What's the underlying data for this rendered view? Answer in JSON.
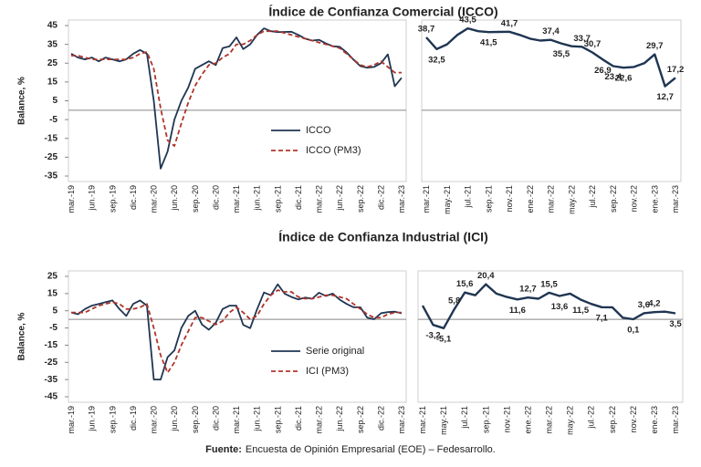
{
  "chart_data": [
    {
      "type": "line",
      "title": "Índice de Confianza Comercial (ICCO)",
      "ylabel": "Balance, %",
      "categories": [
        "mar.-19",
        null,
        null,
        "jun.-19",
        null,
        null,
        "sep.-19",
        null,
        null,
        "dic.-19",
        null,
        null,
        "mar.-20",
        null,
        null,
        "jun.-20",
        null,
        null,
        "sep.-20",
        null,
        null,
        "dic.-20",
        null,
        null,
        "mar.-21",
        null,
        null,
        "jun.-21",
        null,
        null,
        "sep.-21",
        null,
        null,
        "dic.-21",
        null,
        null,
        "mar.-22",
        null,
        null,
        "jun.-22",
        null,
        null,
        "sep.-22",
        null,
        null,
        "dic.-22",
        null,
        null,
        "mar.-23"
      ],
      "series": [
        {
          "name": "ICCO",
          "color": "#1f3552",
          "style": "solid",
          "values": [
            30,
            28,
            27,
            28,
            26,
            28,
            27,
            26,
            27,
            30,
            32,
            30,
            5,
            -31,
            -22,
            -5,
            5,
            12,
            22,
            24,
            26,
            24,
            33,
            34,
            38.7,
            32.5,
            35,
            40,
            43.5,
            42,
            41.5,
            41.6,
            41.7,
            40,
            38,
            37,
            37.4,
            35.5,
            34,
            33.7,
            30.7,
            26.9,
            23.4,
            22.6,
            23,
            25,
            29.7,
            12.7,
            17.2
          ]
        },
        {
          "name": "ICCO (PM3)",
          "color": "#b0352b",
          "style": "dashed",
          "values": [
            29,
            29,
            28,
            27,
            27,
            27,
            27,
            27,
            27,
            28,
            30,
            31,
            22,
            1,
            -16,
            -19,
            -7,
            4,
            13,
            19,
            24,
            25,
            28,
            30,
            35,
            35,
            37,
            40,
            42,
            42,
            42,
            41,
            40,
            39,
            38,
            37,
            36,
            35,
            34,
            33,
            30,
            27,
            24,
            23,
            24,
            26,
            23,
            20,
            20
          ]
        }
      ],
      "ylim": [
        -35,
        45
      ],
      "yticks": [
        45,
        35,
        25,
        15,
        5,
        -5,
        -15,
        -25,
        -35
      ],
      "legend": "lower right"
    },
    {
      "type": "line",
      "categories": [
        "mar.-21",
        null,
        "may.-21",
        null,
        "jul.-21",
        null,
        "sep.-21",
        null,
        "nov.-21",
        null,
        "ene.-22",
        null,
        "mar.-22",
        null,
        "may.-22",
        null,
        "jul.-22",
        null,
        "sep.-22",
        null,
        "nov.-22",
        null,
        "ene.-23",
        null,
        "mar.-23"
      ],
      "values": [
        38.7,
        32.5,
        35,
        40,
        43.5,
        42,
        41.5,
        41.6,
        41.7,
        40,
        38,
        37,
        37.4,
        35.5,
        34,
        33.7,
        30.7,
        26.9,
        23.4,
        22.6,
        23,
        25,
        29.7,
        12.7,
        17.2
      ],
      "value_labels": [
        "38,7",
        "32,5",
        null,
        null,
        "43,5",
        null,
        "41,5",
        null,
        "41,7",
        null,
        null,
        null,
        "37,4",
        "35,5",
        null,
        "33,7",
        "30,7",
        "26,9",
        "23,4",
        "22,6",
        null,
        null,
        "29,7",
        "12,7",
        "17,2"
      ],
      "color": "#1f3552",
      "ylim": [
        -35,
        45
      ]
    },
    {
      "type": "line",
      "title": "Índice de Confianza Industrial (ICI)",
      "ylabel": "Balance, %",
      "categories": [
        "mar.-19",
        null,
        null,
        "jun.-19",
        null,
        null,
        "sep.-19",
        null,
        null,
        "dic.-19",
        null,
        null,
        "mar.-20",
        null,
        null,
        "jun.-20",
        null,
        null,
        "sep.-20",
        null,
        null,
        "dic.-20",
        null,
        null,
        "mar.-21",
        null,
        null,
        "jun.-21",
        null,
        null,
        "sep.-21",
        null,
        null,
        "dic.-21",
        null,
        null,
        "mar.-22",
        null,
        null,
        "jun.-22",
        null,
        null,
        "sep.-22",
        null,
        null,
        "dic.-22",
        null,
        null,
        "mar.-23"
      ],
      "series": [
        {
          "name": "Serie original",
          "color": "#1f3552",
          "style": "solid",
          "values": [
            4,
            3,
            6,
            8,
            9,
            10,
            11,
            6,
            2,
            9,
            11,
            8,
            -35,
            -35,
            -22,
            -18,
            -5,
            2,
            5,
            -3,
            -6,
            -2,
            6,
            8,
            8,
            -3.2,
            -5.1,
            5.8,
            15.6,
            14,
            20.4,
            15,
            13,
            11.6,
            12.7,
            12,
            15.5,
            13.6,
            15,
            11.5,
            9,
            7.1,
            7,
            1,
            0.1,
            3.6,
            4.2,
            4.5,
            3.5
          ]
        },
        {
          "name": "ICI (PM3)",
          "color": "#b0352b",
          "style": "dashed",
          "values": [
            4,
            4,
            4,
            6,
            8,
            9,
            10,
            9,
            6,
            6,
            7,
            9,
            -5,
            -21,
            -31,
            -25,
            -15,
            -7,
            1,
            1,
            -1,
            -3,
            -1,
            4,
            7,
            4,
            0,
            2,
            9,
            14,
            17,
            16,
            16,
            13,
            12,
            12,
            13,
            14,
            14,
            13,
            12,
            9,
            6,
            3,
            1,
            1,
            3,
            4,
            4
          ]
        }
      ],
      "ylim": [
        -45,
        25
      ],
      "yticks": [
        25,
        15,
        5,
        -5,
        -15,
        -25,
        -35,
        -45
      ],
      "legend": "lower right"
    },
    {
      "type": "line",
      "categories": [
        "mar.-21",
        null,
        "may.-21",
        null,
        "jul.-21",
        null,
        "sep.-21",
        null,
        "nov.-21",
        null,
        "ene.-22",
        null,
        "mar.-22",
        null,
        "may.-22",
        null,
        "jul.-22",
        null,
        "sep.-22",
        null,
        "nov.-22",
        null,
        "ene.-23",
        null,
        "mar.-23"
      ],
      "values": [
        8,
        -3.2,
        -5.1,
        5.8,
        15.6,
        14,
        20.4,
        15,
        13,
        11.6,
        12.7,
        12,
        15.5,
        13.6,
        15,
        11.5,
        9,
        7.1,
        7,
        1,
        0.1,
        3.6,
        4.2,
        4.5,
        3.5
      ],
      "value_labels": [
        null,
        "-3,2",
        "-5,1",
        "5,8",
        "15,6",
        null,
        "20,4",
        null,
        null,
        "11,6",
        "12,7",
        null,
        "15,5",
        "13,6",
        null,
        "11,5",
        null,
        "7,1",
        null,
        null,
        "0,1",
        "3,6",
        "4,2",
        null,
        "3,5"
      ],
      "color": "#1f3552",
      "ylim": [
        -45,
        25
      ]
    }
  ],
  "source": {
    "label": "Fuente:",
    "text": "Encuesta de Opinión Empresarial (EOE) – Fedesarrollo."
  }
}
